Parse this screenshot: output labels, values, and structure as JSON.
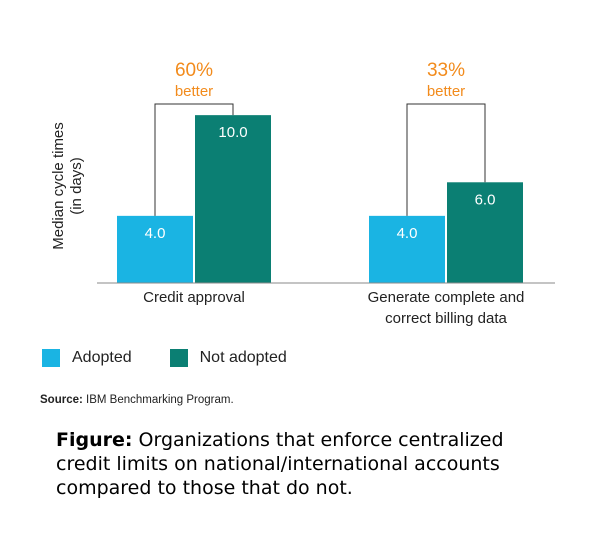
{
  "chart_data": {
    "type": "bar",
    "ylabel": "Median cycle times\n(in days)",
    "categories": [
      "Credit approval",
      "Generate complete and\ncorrect billing data"
    ],
    "series": [
      {
        "name": "Adopted",
        "color": "#1ab4e3",
        "values": [
          4.0,
          4.0
        ],
        "labels": [
          "4.0",
          "4.0"
        ]
      },
      {
        "name": "Not adopted",
        "color": "#0b7f73",
        "values": [
          10.0,
          6.0
        ],
        "labels": [
          "10.0",
          "6.0"
        ]
      }
    ],
    "ylim": [
      0,
      11.2
    ],
    "grid": false,
    "legend_position": "bottom-left",
    "annotations": [
      {
        "category": "Credit approval",
        "percent": "60%",
        "word": "better"
      },
      {
        "category": "Generate complete and correct billing data",
        "percent": "33%",
        "word": "better"
      }
    ],
    "annotation_color": "#f28b1c"
  },
  "legend": {
    "adopted_label": "Adopted",
    "not_adopted_label": "Not adopted",
    "adopted_color": "#1ab4e3",
    "not_adopted_color": "#0b7f73"
  },
  "source": {
    "prefix": "Source:",
    "text": " IBM Benchmarking Program."
  },
  "caption": {
    "prefix": "Figure:",
    "text": " Organizations that enforce centralized credit limits on national/international accounts compared to those that do not."
  }
}
